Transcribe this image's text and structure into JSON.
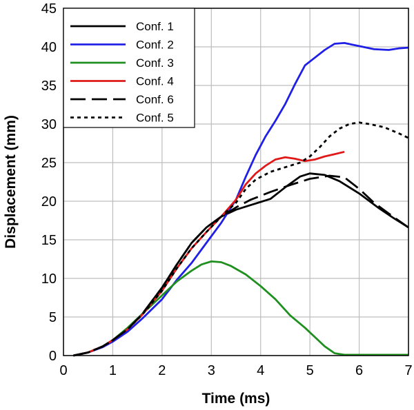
{
  "chart_data": {
    "type": "line",
    "xlabel": "Time (ms)",
    "ylabel": "Displacement (mm)",
    "xlim": [
      0,
      7
    ],
    "ylim": [
      0,
      45
    ],
    "xticks": [
      0,
      1,
      2,
      3,
      4,
      5,
      6,
      7
    ],
    "yticks": [
      0,
      5,
      10,
      15,
      20,
      25,
      30,
      35,
      40,
      45
    ],
    "grid": true,
    "legend_position": "top-left",
    "series": [
      {
        "name": "Conf. 1",
        "color": "#000000",
        "dash": "solid",
        "points": [
          [
            0.2,
            0
          ],
          [
            0.5,
            0.4
          ],
          [
            0.8,
            1.2
          ],
          [
            1.0,
            2.0
          ],
          [
            1.3,
            3.4
          ],
          [
            1.6,
            5.4
          ],
          [
            2.0,
            8.8
          ],
          [
            2.3,
            11.8
          ],
          [
            2.6,
            14.6
          ],
          [
            2.9,
            16.6
          ],
          [
            3.2,
            18.0
          ],
          [
            3.5,
            18.9
          ],
          [
            3.8,
            19.5
          ],
          [
            4.2,
            20.3
          ],
          [
            4.5,
            21.8
          ],
          [
            4.8,
            23.2
          ],
          [
            5.0,
            23.6
          ],
          [
            5.3,
            23.4
          ],
          [
            5.6,
            22.6
          ],
          [
            6.0,
            21.0
          ],
          [
            6.4,
            19.1
          ],
          [
            6.7,
            17.8
          ],
          [
            7.0,
            16.6
          ]
        ]
      },
      {
        "name": "Conf. 2",
        "color": "#1f1fe6",
        "dash": "solid",
        "points": [
          [
            0.2,
            0
          ],
          [
            0.5,
            0.4
          ],
          [
            0.8,
            1.1
          ],
          [
            1.0,
            1.8
          ],
          [
            1.3,
            3.1
          ],
          [
            1.6,
            4.8
          ],
          [
            2.0,
            7.3
          ],
          [
            2.3,
            9.8
          ],
          [
            2.6,
            12.0
          ],
          [
            2.9,
            14.6
          ],
          [
            3.2,
            17.2
          ],
          [
            3.5,
            20.2
          ],
          [
            3.7,
            23.2
          ],
          [
            3.9,
            26.0
          ],
          [
            4.1,
            28.4
          ],
          [
            4.3,
            30.4
          ],
          [
            4.5,
            32.6
          ],
          [
            4.7,
            35.2
          ],
          [
            4.9,
            37.6
          ],
          [
            5.1,
            38.6
          ],
          [
            5.3,
            39.6
          ],
          [
            5.5,
            40.4
          ],
          [
            5.7,
            40.5
          ],
          [
            6.0,
            40.1
          ],
          [
            6.3,
            39.7
          ],
          [
            6.6,
            39.6
          ],
          [
            6.8,
            39.8
          ],
          [
            7.0,
            39.9
          ]
        ]
      },
      {
        "name": "Conf. 3",
        "color": "#1f8f1f",
        "dash": "solid",
        "points": [
          [
            0.2,
            0
          ],
          [
            0.5,
            0.4
          ],
          [
            0.8,
            1.2
          ],
          [
            1.0,
            2.0
          ],
          [
            1.3,
            3.6
          ],
          [
            1.6,
            5.4
          ],
          [
            2.0,
            7.8
          ],
          [
            2.3,
            9.6
          ],
          [
            2.6,
            11.0
          ],
          [
            2.8,
            11.8
          ],
          [
            3.0,
            12.2
          ],
          [
            3.2,
            12.1
          ],
          [
            3.4,
            11.6
          ],
          [
            3.7,
            10.5
          ],
          [
            4.0,
            9.0
          ],
          [
            4.3,
            7.3
          ],
          [
            4.6,
            5.2
          ],
          [
            4.9,
            3.6
          ],
          [
            5.1,
            2.4
          ],
          [
            5.3,
            1.2
          ],
          [
            5.5,
            0.3
          ],
          [
            5.7,
            0.1
          ],
          [
            6.0,
            0.1
          ],
          [
            7.0,
            0.1
          ]
        ]
      },
      {
        "name": "Conf. 4",
        "color": "#e01818",
        "dash": "solid",
        "points": [
          [
            0.2,
            0
          ],
          [
            0.5,
            0.4
          ],
          [
            0.8,
            1.2
          ],
          [
            1.0,
            2.0
          ],
          [
            1.3,
            3.4
          ],
          [
            1.6,
            5.3
          ],
          [
            2.0,
            8.4
          ],
          [
            2.3,
            11.3
          ],
          [
            2.6,
            13.9
          ],
          [
            2.9,
            16.0
          ],
          [
            3.2,
            18.0
          ],
          [
            3.5,
            20.2
          ],
          [
            3.7,
            22.2
          ],
          [
            3.9,
            23.6
          ],
          [
            4.1,
            24.6
          ],
          [
            4.3,
            25.4
          ],
          [
            4.5,
            25.7
          ],
          [
            4.7,
            25.5
          ],
          [
            4.9,
            25.2
          ],
          [
            5.1,
            25.4
          ],
          [
            5.3,
            25.8
          ],
          [
            5.5,
            26.1
          ],
          [
            5.7,
            26.4
          ]
        ]
      },
      {
        "name": "Conf. 6",
        "color": "#000000",
        "dash": "longdash",
        "points": [
          [
            0.2,
            0
          ],
          [
            0.5,
            0.4
          ],
          [
            0.8,
            1.2
          ],
          [
            1.0,
            2.0
          ],
          [
            1.3,
            3.4
          ],
          [
            1.6,
            5.4
          ],
          [
            2.0,
            8.8
          ],
          [
            2.3,
            11.8
          ],
          [
            2.6,
            14.6
          ],
          [
            2.9,
            16.6
          ],
          [
            3.2,
            18.0
          ],
          [
            3.5,
            19.2
          ],
          [
            3.8,
            20.2
          ],
          [
            4.2,
            21.2
          ],
          [
            4.6,
            22.1
          ],
          [
            5.0,
            22.9
          ],
          [
            5.4,
            23.3
          ],
          [
            5.7,
            23.1
          ],
          [
            6.0,
            21.6
          ],
          [
            6.3,
            19.8
          ],
          [
            6.6,
            18.4
          ],
          [
            7.0,
            16.6
          ]
        ]
      },
      {
        "name": "Conf. 5",
        "color": "#000000",
        "dash": "dotted",
        "points": [
          [
            0.2,
            0
          ],
          [
            0.5,
            0.4
          ],
          [
            0.8,
            1.2
          ],
          [
            1.0,
            2.0
          ],
          [
            1.3,
            3.4
          ],
          [
            1.6,
            5.3
          ],
          [
            2.0,
            8.4
          ],
          [
            2.3,
            11.3
          ],
          [
            2.6,
            13.9
          ],
          [
            2.9,
            16.0
          ],
          [
            3.2,
            18.0
          ],
          [
            3.5,
            19.8
          ],
          [
            3.7,
            21.6
          ],
          [
            3.9,
            22.8
          ],
          [
            4.2,
            23.8
          ],
          [
            4.5,
            24.4
          ],
          [
            4.8,
            25.0
          ],
          [
            5.0,
            25.8
          ],
          [
            5.2,
            27.0
          ],
          [
            5.4,
            28.4
          ],
          [
            5.6,
            29.4
          ],
          [
            5.8,
            30.0
          ],
          [
            6.0,
            30.2
          ],
          [
            6.2,
            30.0
          ],
          [
            6.5,
            29.6
          ],
          [
            6.8,
            28.8
          ],
          [
            7.0,
            28.2
          ]
        ]
      }
    ]
  }
}
